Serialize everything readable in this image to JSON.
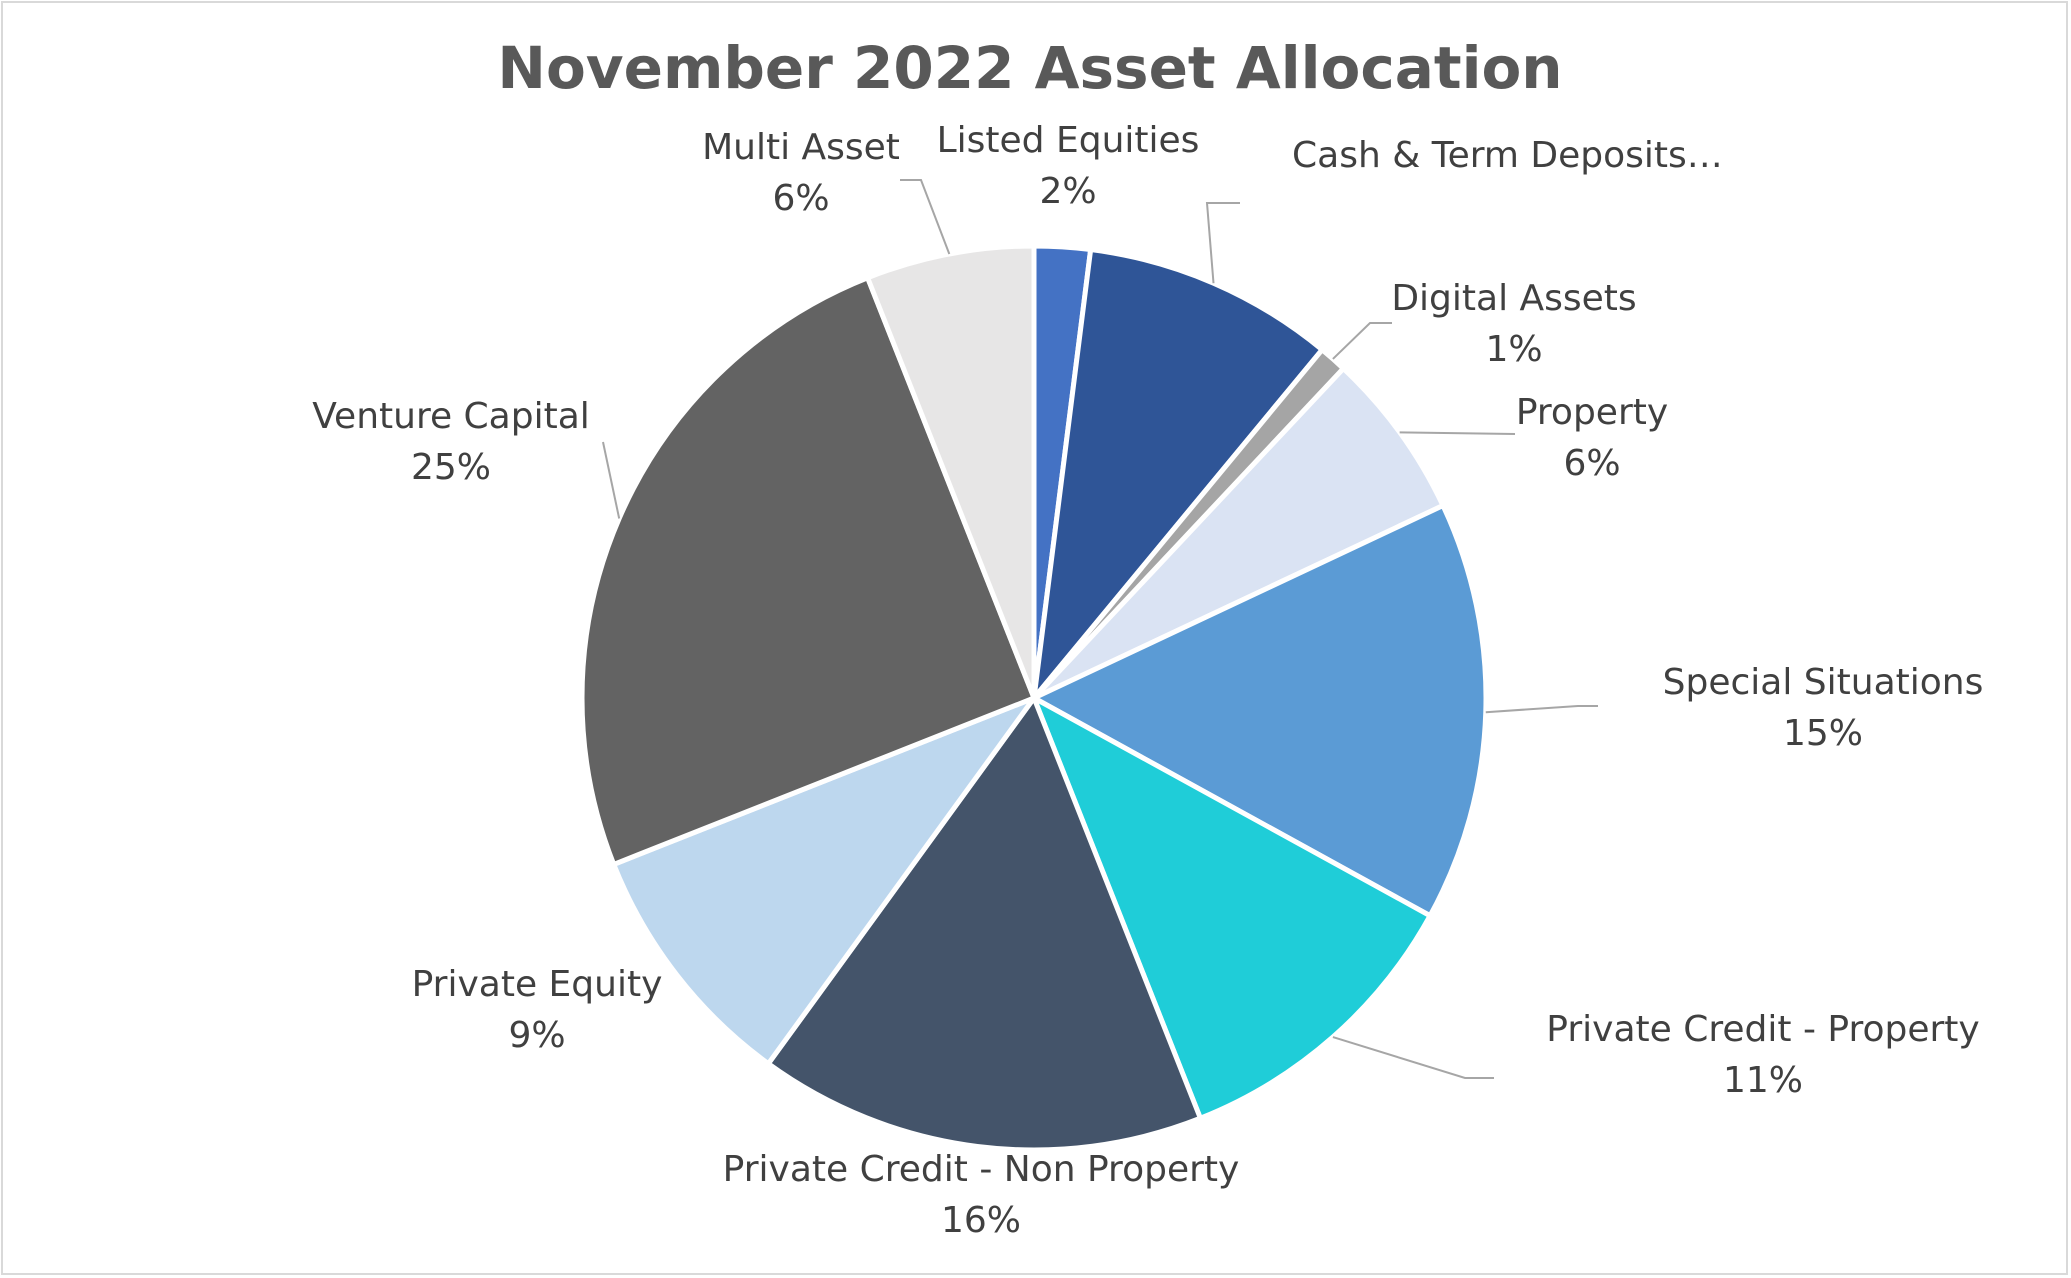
{
  "chart_data": {
    "type": "pie",
    "title": "November 2022 Asset Allocation",
    "slices": [
      {
        "label": "Listed Equities",
        "value": 2,
        "value_label": "2%",
        "color": "#4472c4"
      },
      {
        "label": "Cash & Term Deposits…",
        "value": 9,
        "value_label": "",
        "color": "#2f5597"
      },
      {
        "label": "Digital Assets",
        "value": 1,
        "value_label": "1%",
        "color": "#a5a5a5"
      },
      {
        "label": "Property",
        "value": 6,
        "value_label": "6%",
        "color": "#dae3f3"
      },
      {
        "label": "Special Situations",
        "value": 15,
        "value_label": "15%",
        "color": "#5b9bd5"
      },
      {
        "label": "Private Credit - Property",
        "value": 11,
        "value_label": "11%",
        "color": "#1fcdd8"
      },
      {
        "label": "Private Credit - Non Property",
        "value": 16,
        "value_label": "16%",
        "color": "#44546a"
      },
      {
        "label": "Private Equity",
        "value": 9,
        "value_label": "9%",
        "color": "#bdd7ee"
      },
      {
        "label": "Venture Capital",
        "value": 25,
        "value_label": "25%",
        "color": "#636363"
      },
      {
        "label": "Multi Asset",
        "value": 6,
        "value_label": "6%",
        "color": "#e7e6e6"
      }
    ],
    "legend": "none",
    "labels": "outside with leader lines"
  }
}
